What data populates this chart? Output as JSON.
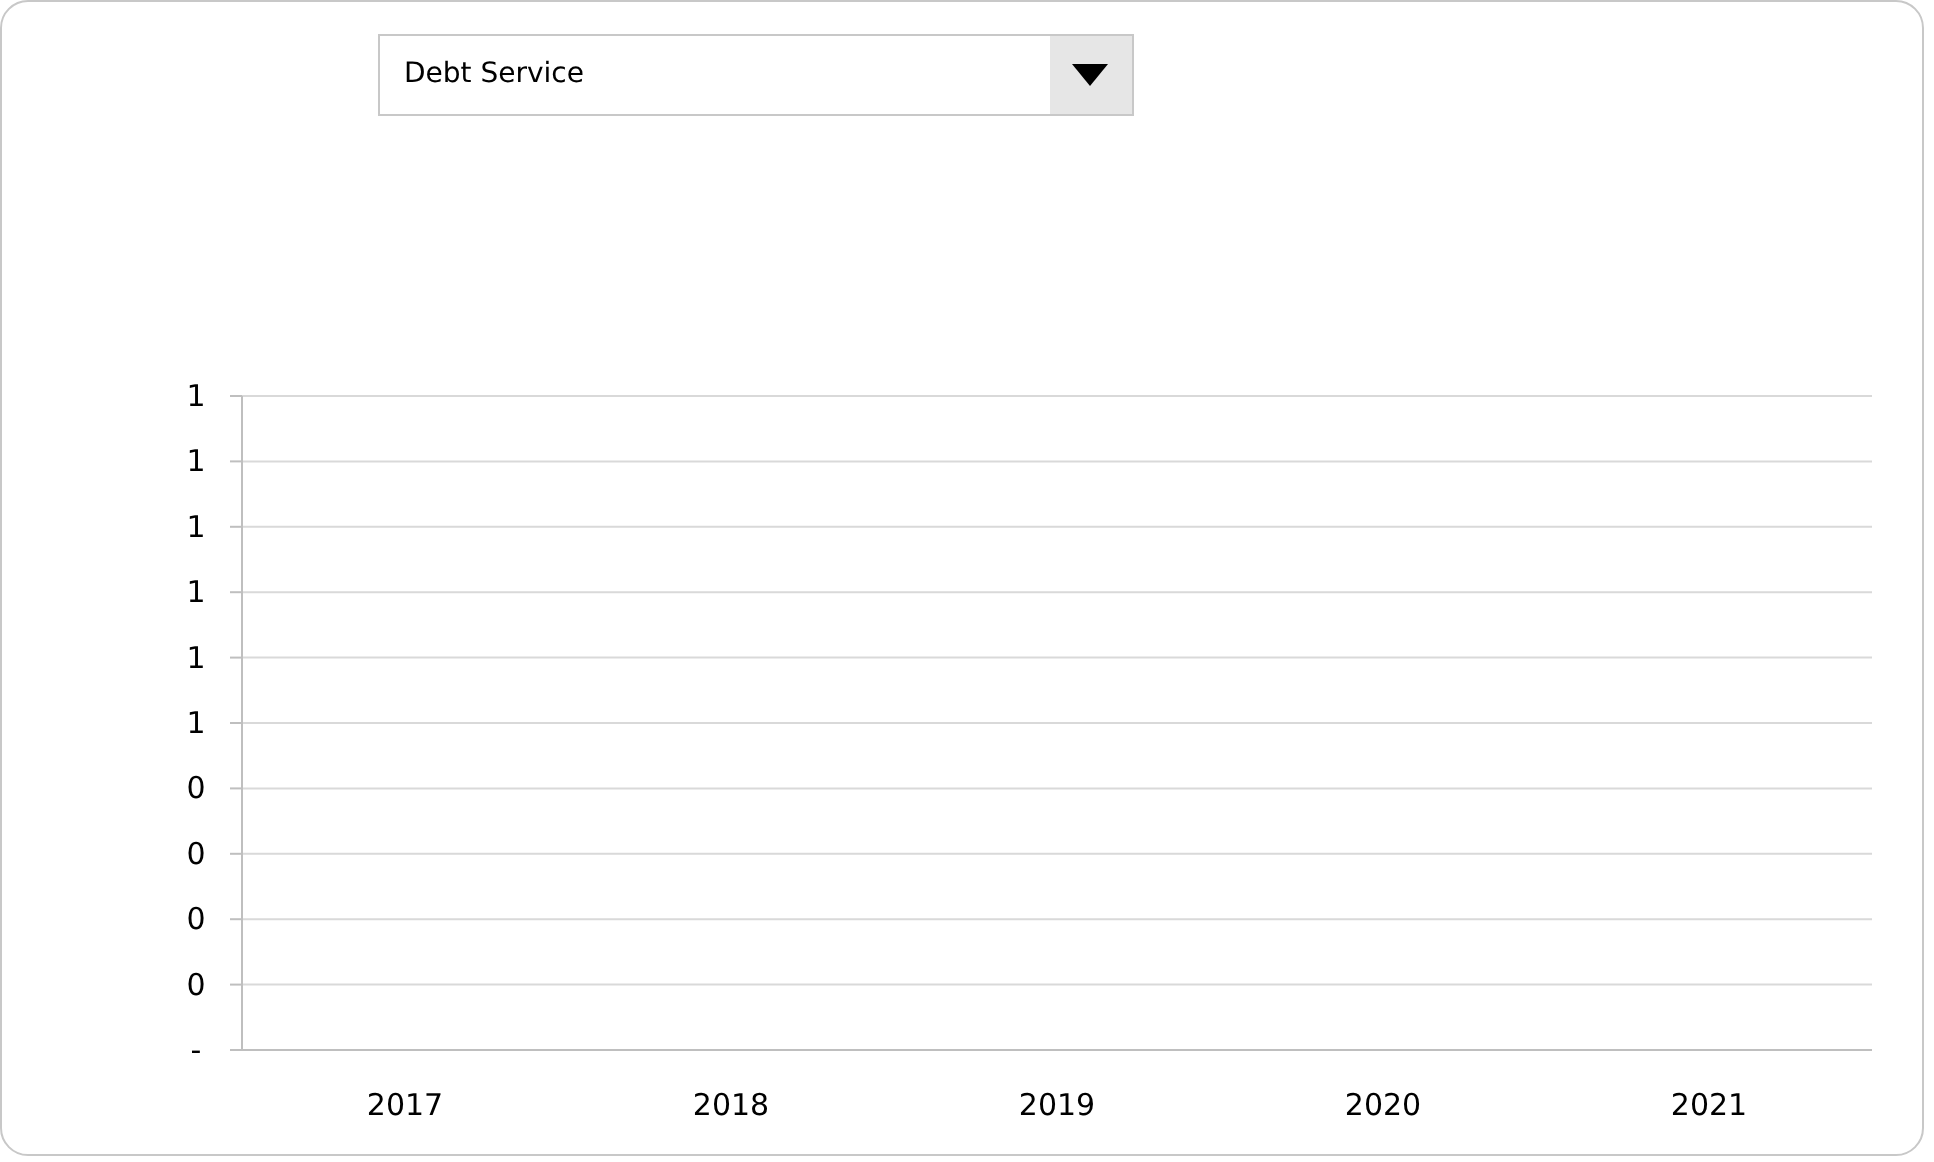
{
  "chart_data": {
    "type": "bar",
    "title": "Debt Service",
    "categories": [
      "2017",
      "2018",
      "2019",
      "2020",
      "2021"
    ],
    "values": [
      0,
      0,
      0,
      0,
      0
    ],
    "ylim": [
      0,
      1
    ],
    "yticks": [
      {
        "value": 0,
        "label": "-"
      },
      {
        "value": 0.1,
        "label": "0"
      },
      {
        "value": 0.2,
        "label": "0"
      },
      {
        "value": 0.3,
        "label": "0"
      },
      {
        "value": 0.4,
        "label": "0"
      },
      {
        "value": 0.5,
        "label": "1"
      },
      {
        "value": 0.6,
        "label": "1"
      },
      {
        "value": 0.7,
        "label": "1"
      },
      {
        "value": 0.8,
        "label": "1"
      },
      {
        "value": 0.9,
        "label": "1"
      },
      {
        "value": 1,
        "label": "1"
      }
    ],
    "grid": "y",
    "legend": false
  }
}
